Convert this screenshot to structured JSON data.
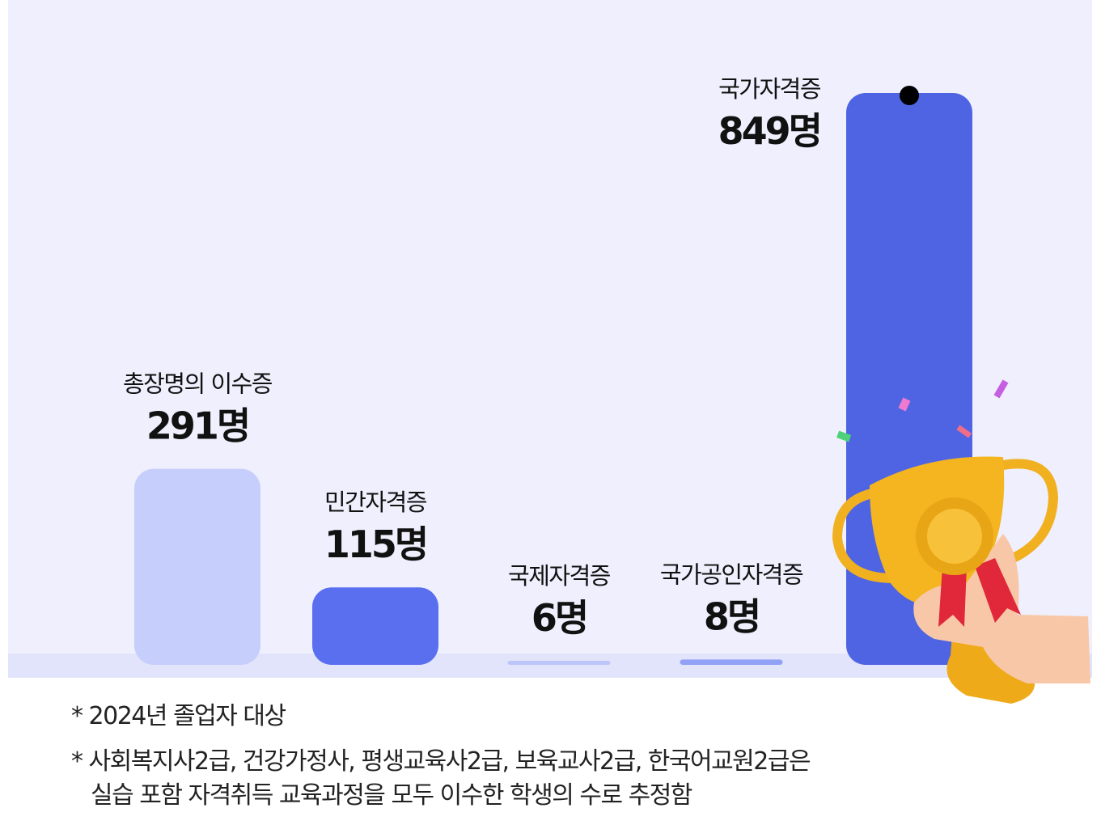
{
  "chart_data": {
    "type": "bar",
    "categories": [
      "총장명의 이수증",
      "민간자격증",
      "국제자격증",
      "국가공인자격증",
      "국가자격증"
    ],
    "values": [
      291,
      115,
      6,
      8,
      849
    ],
    "value_labels": [
      "291명",
      "115명",
      "6명",
      "8명",
      "849명"
    ],
    "colors": [
      "#c6cefc",
      "#5a6ff0",
      "#bcc6fb",
      "#91a1f5",
      "#4e64e2"
    ]
  },
  "notes": [
    "*  2024년 졸업자 대상",
    "* 사회복지사2급, 건강가정사, 평생교육사2급, 보육교사2급, 한국어교원2급은",
    "실습 포함 자격취득 교육과정을 모두 이수한 학생의 수로 추정함"
  ]
}
